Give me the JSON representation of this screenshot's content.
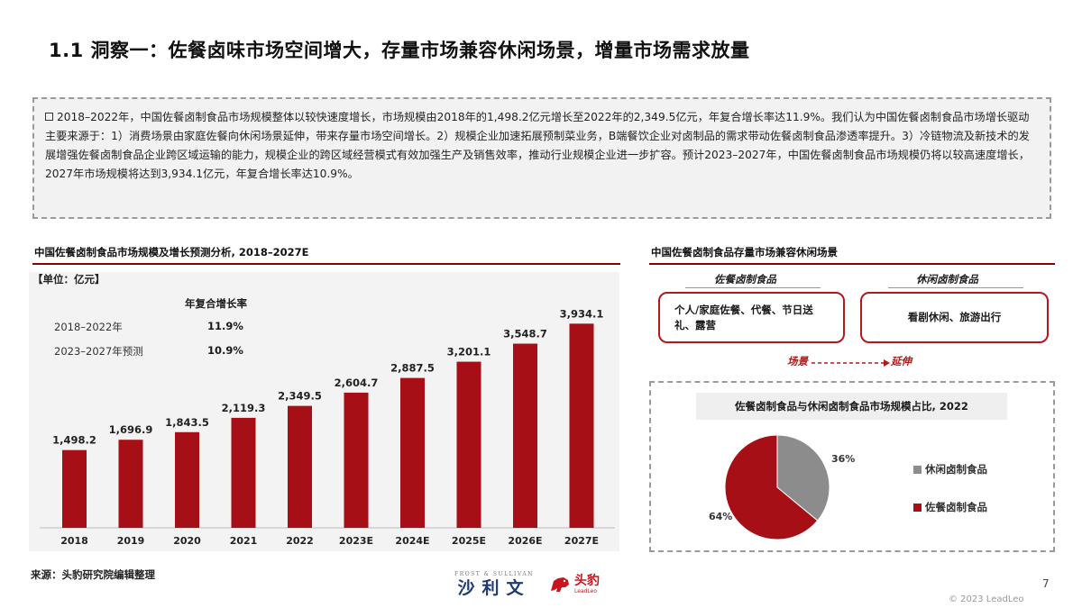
{
  "page": {
    "title": "1.1 洞察一：佐餐卤味市场空间增大，存量市场兼容休闲场景，增量市场需求放量",
    "summary": "2018–2022年，中国佐餐卤制食品市场规模整体以较快速度增长，市场规模由2018年的1,498.2亿元增长至2022年的2,349.5亿元，年复合增长率达11.9%。我们认为中国佐餐卤制食品市场增长驱动主要来源于：1）消费场景由家庭佐餐向休闲场景延伸，带来存量市场空间增长。2）规模企业加速拓展预制菜业务，B端餐饮企业对卤制品的需求带动佐餐卤制食品渗透率提升。3）冷链物流及新技术的发展增强佐餐卤制食品企业跨区域运输的能力，规模企业的跨区域经营模式有效加强生产及销售效率，推动行业规模企业进一步扩容。预计2023–2027年，中国佐餐卤制食品市场规模仍将以较高速度增长，2027年市场规模将达到3,934.1亿元，年复合增长率达10.9%。",
    "source": "来源：头豹研究院编辑整理",
    "page_number": "7",
    "copyright": "© 2023 LeadLeo"
  },
  "left_chart": {
    "section_title": "中国佐餐卤制食品市场规模及增长预测分析, 2018–2027E",
    "unit": "【单位：亿元】",
    "cagr_header": "年复合增长率",
    "cagr_rows": [
      {
        "label": "2018–2022年",
        "value": "11.9%"
      },
      {
        "label": "2023–2027年预测",
        "value": "10.9%"
      }
    ]
  },
  "chart_data": {
    "type": "bar",
    "categories": [
      "2018",
      "2019",
      "2020",
      "2021",
      "2022",
      "2023E",
      "2024E",
      "2025E",
      "2026E",
      "2027E"
    ],
    "values": [
      1498.2,
      1696.9,
      1843.5,
      2119.3,
      2349.5,
      2604.7,
      2887.5,
      3201.1,
      3548.7,
      3934.1
    ],
    "value_labels": [
      "1,498.2",
      "1,696.9",
      "1,843.5",
      "2,119.3",
      "2,349.5",
      "2,604.7",
      "2,887.5",
      "3,201.1",
      "3,548.7",
      "3,934.1"
    ],
    "ylim": [
      0,
      4200
    ],
    "bar_color": "#a50f15",
    "grid": false
  },
  "right_top": {
    "section_title": "中国佐餐卤制食品存量市场兼容休闲场景",
    "col1_title": "佐餐卤制食品",
    "col2_title": "休闲卤制食品",
    "box1_text": "个人/家庭佐餐、代餐、节日送礼、露营",
    "box2_text": "看剧休闲、旅游出行",
    "flow_word1": "场景",
    "flow_word2": "延伸"
  },
  "pie": {
    "title": "佐餐卤制食品与休闲卤制食品市场规模占比, 2022",
    "slices": [
      {
        "label": "休闲卤制食品",
        "value": 36,
        "display": "36%",
        "color": "#8c8c8c"
      },
      {
        "label": "佐餐卤制食品",
        "value": 64,
        "display": "64%",
        "color": "#a50f15"
      }
    ]
  },
  "logos": {
    "frost_top": "FROST & SULLIVAN",
    "frost_cn": "沙利文",
    "leadleo_cn": "头豹",
    "leadleo_en": "LeadLeo"
  }
}
